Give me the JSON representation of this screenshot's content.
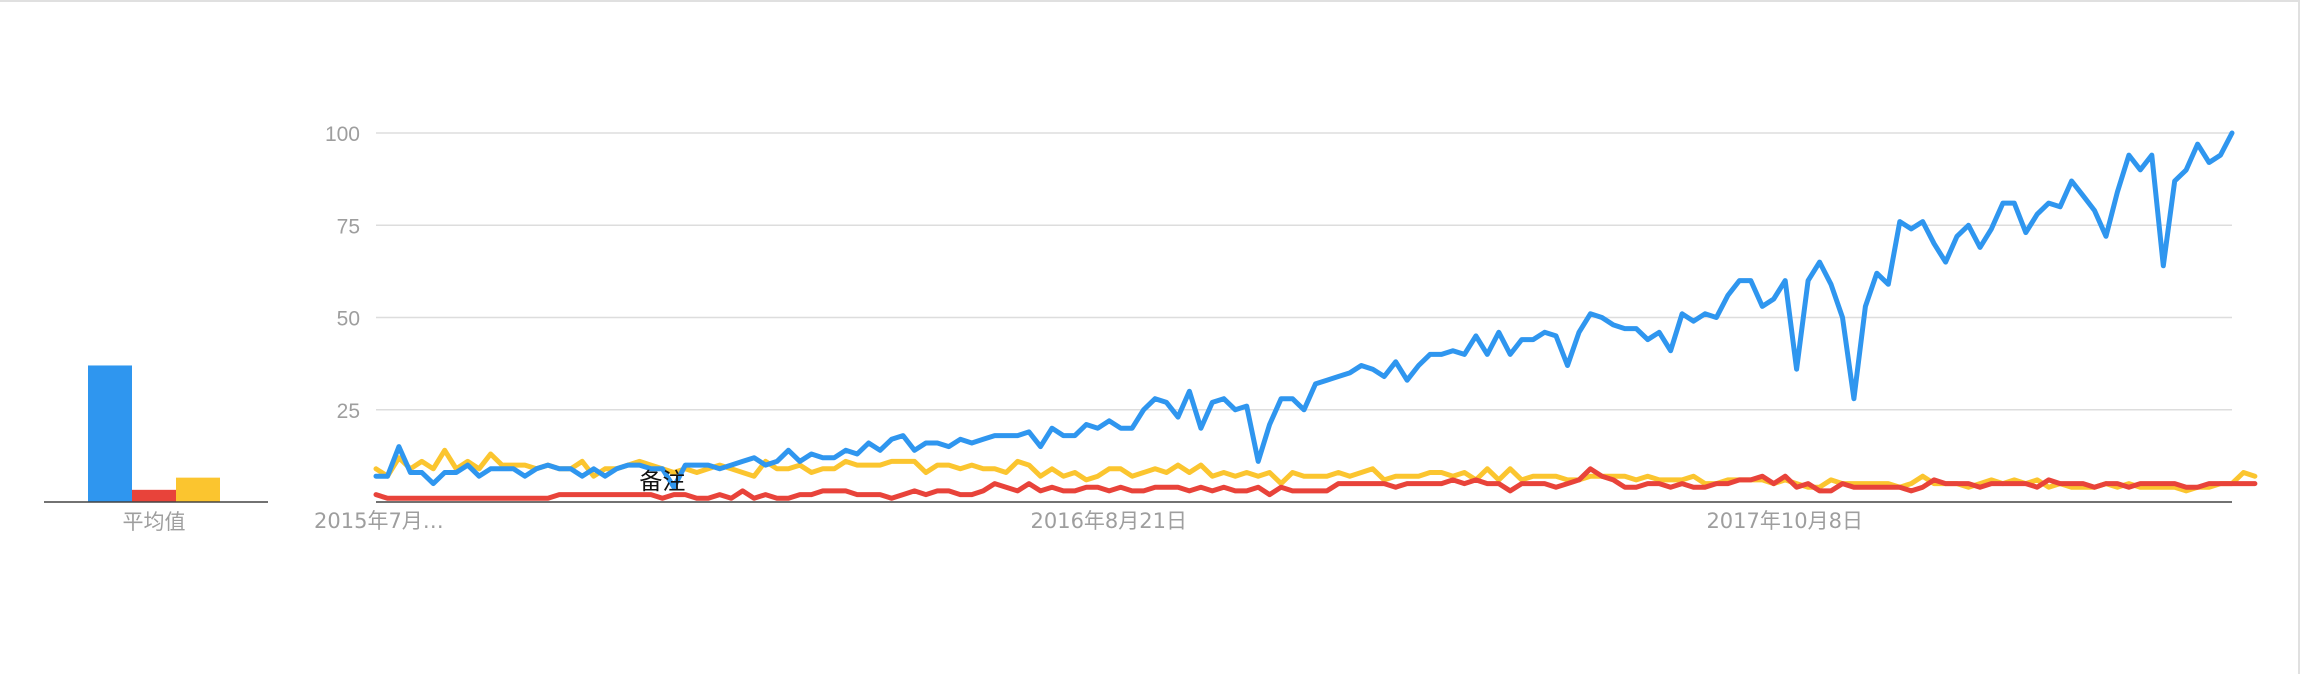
{
  "chart_data": [
    {
      "type": "bar",
      "categories": [
        "平均值"
      ],
      "series": [
        {
          "color": "#2f96ef",
          "values": [
            37
          ]
        },
        {
          "color": "#e8433a",
          "values": [
            3.3
          ]
        },
        {
          "color": "#fbc52f",
          "values": [
            6.6
          ]
        }
      ],
      "ylim": [
        0,
        100
      ]
    },
    {
      "type": "line",
      "ylim": [
        0,
        100
      ],
      "yticks": [
        25,
        50,
        75,
        100
      ],
      "grid": true,
      "x_tick_labels": [
        {
          "label": "2015年7月…",
          "x": 0
        },
        {
          "label": "2016年8月21日",
          "x": 58
        },
        {
          "label": "2017年10月8日",
          "x": 117
        }
      ],
      "annotation": {
        "label": "备注",
        "x": 25
      },
      "series": [
        {
          "color": "#2f96ef",
          "values": [
            7,
            7,
            15,
            8,
            8,
            5,
            8,
            8,
            10,
            7,
            9,
            9,
            9,
            7,
            9,
            10,
            9,
            9,
            7,
            9,
            7,
            9,
            10,
            10,
            9,
            9,
            4,
            10,
            10,
            10,
            9,
            10,
            11,
            12,
            10,
            11,
            14,
            11,
            13,
            12,
            12,
            14,
            13,
            16,
            14,
            17,
            18,
            14,
            16,
            16,
            15,
            17,
            16,
            17,
            18,
            18,
            18,
            19,
            15,
            20,
            18,
            18,
            21,
            20,
            22,
            20,
            20,
            25,
            28,
            27,
            23,
            30,
            20,
            27,
            28,
            25,
            26,
            11,
            21,
            28,
            28,
            25,
            32,
            33,
            34,
            35,
            37,
            36,
            34,
            38,
            33,
            37,
            40,
            40,
            41,
            40,
            45,
            40,
            46,
            40,
            44,
            44,
            46,
            45,
            37,
            46,
            51,
            50,
            48,
            47,
            47,
            44,
            46,
            41,
            51,
            49,
            51,
            50,
            56,
            60,
            60,
            53,
            55,
            60,
            36,
            60,
            65,
            59,
            50,
            28,
            53,
            62,
            59,
            76,
            74,
            76,
            70,
            65,
            72,
            75,
            69,
            74,
            81,
            81,
            73,
            78,
            81,
            80,
            87,
            83,
            79,
            72,
            84,
            94,
            90,
            94,
            64,
            87,
            90,
            97,
            92,
            94,
            100
          ]
        },
        {
          "color": "#e8433a",
          "values": [
            2,
            1,
            1,
            1,
            1,
            1,
            1,
            1,
            1,
            1,
            1,
            1,
            1,
            1,
            1,
            1,
            2,
            2,
            2,
            2,
            2,
            2,
            2,
            2,
            2,
            1,
            2,
            2,
            1,
            1,
            2,
            1,
            3,
            1,
            2,
            1,
            1,
            2,
            2,
            3,
            3,
            3,
            2,
            2,
            2,
            1,
            2,
            3,
            2,
            3,
            3,
            2,
            2,
            3,
            5,
            4,
            3,
            5,
            3,
            4,
            3,
            3,
            4,
            4,
            3,
            4,
            3,
            3,
            4,
            4,
            4,
            3,
            4,
            3,
            4,
            3,
            3,
            4,
            2,
            4,
            3,
            3,
            3,
            3,
            5,
            5,
            5,
            5,
            5,
            4,
            5,
            5,
            5,
            5,
            6,
            5,
            6,
            5,
            5,
            3,
            5,
            5,
            5,
            4,
            5,
            6,
            9,
            7,
            6,
            4,
            4,
            5,
            5,
            4,
            5,
            4,
            4,
            5,
            5,
            6,
            6,
            7,
            5,
            7,
            4,
            5,
            3,
            3,
            5,
            4,
            4,
            4,
            4,
            4,
            3,
            4,
            6,
            5,
            5,
            5,
            4,
            5,
            5,
            5,
            5,
            4,
            6,
            5,
            5,
            5,
            4,
            5,
            5,
            4,
            5,
            5,
            5,
            5,
            4,
            4,
            5,
            5,
            5,
            5,
            5
          ]
        },
        {
          "color": "#fbc52f",
          "values": [
            9,
            7,
            12,
            9,
            11,
            9,
            14,
            9,
            11,
            9,
            13,
            10,
            10,
            10,
            9,
            10,
            9,
            9,
            11,
            7,
            9,
            9,
            10,
            11,
            10,
            9,
            8,
            9,
            8,
            9,
            10,
            9,
            8,
            7,
            11,
            9,
            9,
            10,
            8,
            9,
            9,
            11,
            10,
            10,
            10,
            11,
            11,
            11,
            8,
            10,
            10,
            9,
            10,
            9,
            9,
            8,
            11,
            10,
            7,
            9,
            7,
            8,
            6,
            7,
            9,
            9,
            7,
            8,
            9,
            8,
            10,
            8,
            10,
            7,
            8,
            7,
            8,
            7,
            8,
            5,
            8,
            7,
            7,
            7,
            8,
            7,
            8,
            9,
            6,
            7,
            7,
            7,
            8,
            8,
            7,
            8,
            6,
            9,
            6,
            9,
            6,
            7,
            7,
            7,
            6,
            6,
            7,
            7,
            7,
            7,
            6,
            7,
            6,
            6,
            6,
            7,
            5,
            5,
            6,
            6,
            6,
            6,
            5,
            6,
            5,
            4,
            4,
            6,
            5,
            5,
            5,
            5,
            5,
            4,
            5,
            7,
            5,
            5,
            5,
            4,
            5,
            6,
            5,
            6,
            5,
            6,
            4,
            5,
            4,
            4,
            4,
            5,
            4,
            5,
            4,
            4,
            4,
            4,
            3,
            4,
            4,
            5,
            5,
            8,
            7
          ]
        }
      ]
    }
  ]
}
